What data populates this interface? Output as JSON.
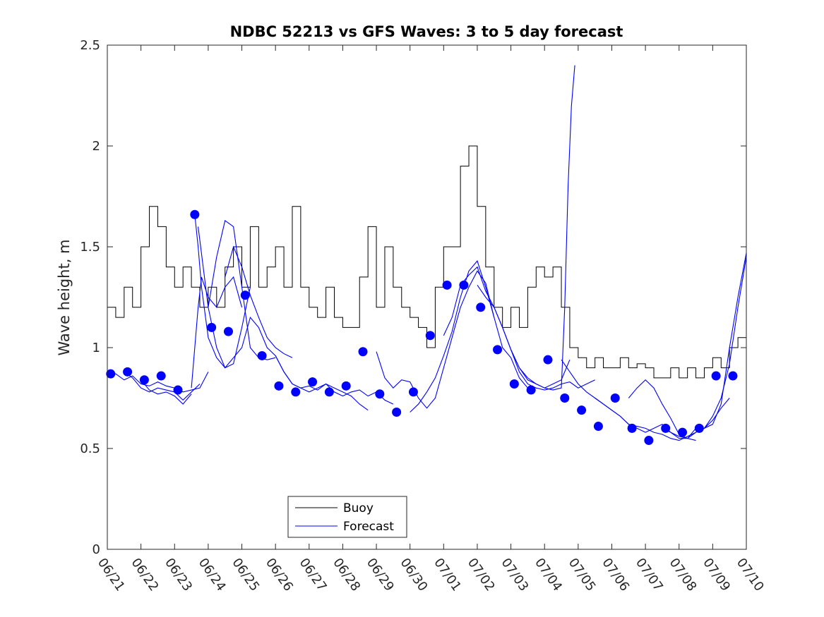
{
  "chart_data": {
    "type": "line",
    "title": "NDBC 52213 vs GFS Waves: 3 to 5 day forecast",
    "xlabel": "",
    "ylabel": "Wave height, m",
    "ylim": [
      0,
      2.5
    ],
    "yticks": [
      "0",
      "0.5",
      "1",
      "1.5",
      "2",
      "2.5"
    ],
    "xlim_days": [
      0,
      19
    ],
    "xticks": [
      "06/21",
      "06/22",
      "06/23",
      "06/24",
      "06/25",
      "06/26",
      "06/27",
      "06/28",
      "06/29",
      "06/30",
      "07/01",
      "07/02",
      "07/03",
      "07/04",
      "07/05",
      "07/06",
      "07/07",
      "07/08",
      "07/09",
      "07/10"
    ],
    "x_unit": "days since 06/21 00:00",
    "grid": false,
    "legend_position": "bottom-center",
    "colors": {
      "buoy": "#000000",
      "forecast": "#0000ff"
    },
    "series": [
      {
        "name": "Buoy",
        "style": "step-line",
        "x": [
          0,
          0.25,
          0.5,
          0.75,
          1,
          1.25,
          1.5,
          1.75,
          2,
          2.25,
          2.5,
          2.75,
          3,
          3.25,
          3.5,
          3.75,
          4,
          4.25,
          4.5,
          4.75,
          5,
          5.25,
          5.5,
          5.75,
          6,
          6.25,
          6.5,
          6.75,
          7,
          7.25,
          7.5,
          7.75,
          8,
          8.25,
          8.5,
          8.75,
          9,
          9.25,
          9.5,
          9.75,
          10,
          10.25,
          10.5,
          10.75,
          11,
          11.25,
          11.5,
          11.75,
          12,
          12.25,
          12.5,
          12.75,
          13,
          13.25,
          13.5,
          13.75,
          14,
          14.25,
          14.5,
          14.75,
          15,
          15.25,
          15.5,
          15.75,
          16,
          16.25,
          16.5,
          16.75,
          17,
          17.25,
          17.5,
          17.75,
          18,
          18.25,
          18.5,
          18.75,
          19
        ],
        "values": [
          1.2,
          1.15,
          1.3,
          1.2,
          1.5,
          1.7,
          1.6,
          1.4,
          1.3,
          1.4,
          1.3,
          1.2,
          1.3,
          1.2,
          1.4,
          1.5,
          1.3,
          1.6,
          1.3,
          1.4,
          1.5,
          1.3,
          1.7,
          1.3,
          1.2,
          1.15,
          1.3,
          1.15,
          1.1,
          1.1,
          1.35,
          1.6,
          1.2,
          1.5,
          1.3,
          1.2,
          1.15,
          1.1,
          1.0,
          1.3,
          1.5,
          1.5,
          1.9,
          2.0,
          1.7,
          1.4,
          1.2,
          1.1,
          1.2,
          1.1,
          1.3,
          1.4,
          1.35,
          1.4,
          1.2,
          1.0,
          0.95,
          0.9,
          0.95,
          0.9,
          0.9,
          0.95,
          0.9,
          0.92,
          0.9,
          0.85,
          0.85,
          0.9,
          0.85,
          0.9,
          0.85,
          0.9,
          0.95,
          0.9,
          1.0,
          1.05,
          1.0
        ]
      },
      {
        "name": "Forecast",
        "style": "line-segments-with-markers",
        "segments": [
          {
            "x": [
              0,
              0.25,
              0.5,
              0.75,
              1,
              1.25,
              1.5,
              1.75,
              2,
              2.25,
              2.5,
              2.75,
              3.0
            ],
            "values": [
              0.87,
              0.87,
              0.84,
              0.86,
              0.82,
              0.81,
              0.83,
              0.81,
              0.8,
              0.78,
              0.79,
              0.8,
              0.88
            ]
          },
          {
            "x": [
              0.5,
              0.75,
              1,
              1.25,
              1.5,
              1.75,
              2,
              2.25,
              2.5,
              2.75
            ],
            "values": [
              0.88,
              0.85,
              0.8,
              0.78,
              0.8,
              0.79,
              0.78,
              0.74,
              0.78,
              0.82
            ]
          },
          {
            "x": [
              1,
              1.25,
              1.5,
              1.75,
              2,
              2.25,
              2.5
            ],
            "values": [
              0.84,
              0.79,
              0.77,
              0.78,
              0.76,
              0.72,
              0.77
            ]
          },
          {
            "x": [
              2.5,
              2.6,
              2.7,
              2.8,
              2.9,
              3.0,
              3.25,
              3.5,
              3.75,
              4.0
            ],
            "values": [
              0.8,
              1.0,
              1.2,
              1.35,
              1.3,
              1.25,
              1.2,
              1.3,
              1.35,
              1.2
            ]
          },
          {
            "x": [
              2.6,
              2.7,
              2.8,
              3.0,
              3.25,
              3.5,
              3.75,
              4.0
            ],
            "values": [
              1.66,
              1.5,
              1.3,
              1.05,
              0.95,
              0.9,
              0.95,
              1.0
            ]
          },
          {
            "x": [
              2.7,
              2.85,
              3.0,
              3.25,
              3.5,
              3.75,
              4.0,
              4.25
            ],
            "values": [
              1.6,
              1.4,
              1.2,
              1.0,
              0.9,
              0.92,
              1.1,
              1.3
            ]
          },
          {
            "x": [
              3.0,
              3.25,
              3.5,
              3.75,
              4.0,
              4.25,
              4.5,
              4.75,
              5.0
            ],
            "values": [
              1.2,
              1.45,
              1.63,
              1.6,
              1.3,
              1.0,
              0.95,
              0.94,
              0.95
            ]
          },
          {
            "x": [
              3.5,
              3.75,
              4.0,
              4.25,
              4.5,
              4.75,
              5.0,
              5.25,
              5.5
            ],
            "values": [
              1.35,
              1.5,
              1.4,
              1.26,
              1.15,
              1.05,
              1.0,
              0.97,
              0.95
            ]
          },
          {
            "x": [
              4.0,
              4.25,
              4.5,
              4.75,
              5.0,
              5.25,
              5.5,
              5.75,
              6.0,
              6.25,
              6.5,
              6.75,
              7.0,
              7.25,
              7.5,
              7.75
            ],
            "values": [
              1.0,
              1.15,
              1.1,
              1.0,
              0.96,
              0.88,
              0.82,
              0.8,
              0.78,
              0.8,
              0.82,
              0.8,
              0.78,
              0.76,
              0.72,
              0.69
            ]
          },
          {
            "x": [
              5.0,
              5.25,
              5.5,
              5.75,
              6.0,
              6.25,
              6.5,
              6.75,
              7.0,
              7.25,
              7.5,
              7.75,
              8.0,
              8.25,
              8.5
            ],
            "values": [
              0.96,
              0.88,
              0.82,
              0.8,
              0.81,
              0.79,
              0.82,
              0.78,
              0.76,
              0.78,
              0.79,
              0.76,
              0.78,
              0.74,
              0.72
            ]
          },
          {
            "x": [
              8.0,
              8.25,
              8.5,
              8.75,
              9.0,
              9.25,
              9.5,
              9.75,
              10.0,
              10.25,
              10.5,
              10.75,
              11.0,
              11.25,
              11.5
            ],
            "values": [
              0.98,
              0.85,
              0.8,
              0.84,
              0.83,
              0.75,
              0.7,
              0.75,
              0.9,
              1.05,
              1.2,
              1.3,
              1.38,
              1.32,
              1.15
            ]
          },
          {
            "x": [
              9.0,
              9.25,
              9.5,
              9.75,
              10.0,
              10.25,
              10.5,
              10.75,
              11.0,
              11.25,
              11.5,
              11.75,
              12.0,
              12.25,
              12.5
            ],
            "values": [
              0.68,
              0.72,
              0.78,
              0.85,
              0.96,
              1.08,
              1.25,
              1.38,
              1.43,
              1.3,
              1.15,
              1.0,
              0.95,
              0.85,
              0.8
            ]
          },
          {
            "x": [
              10.0,
              10.25,
              10.5,
              10.75,
              11.0,
              11.25,
              11.5,
              11.75,
              12.0,
              12.25,
              12.5,
              12.75,
              13.0,
              13.25,
              13.5,
              13.75
            ],
            "values": [
              1.06,
              1.15,
              1.31,
              1.36,
              1.4,
              1.28,
              1.2,
              1.1,
              0.99,
              0.9,
              0.84,
              0.82,
              0.8,
              0.82,
              0.84,
              0.94
            ]
          },
          {
            "x": [
              11.0,
              11.25,
              11.5,
              11.75,
              12.0,
              12.25,
              12.5,
              12.75,
              13.0,
              13.25,
              13.5,
              13.75,
              14.0,
              14.25,
              14.5
            ],
            "values": [
              1.31,
              1.25,
              1.2,
              1.1,
              0.99,
              0.88,
              0.82,
              0.8,
              0.79,
              0.8,
              0.82,
              0.83,
              0.8,
              0.82,
              0.84
            ]
          },
          {
            "x": [
              12.0,
              12.25,
              12.5,
              12.75,
              13.0,
              13.25,
              13.5,
              13.6,
              13.7,
              13.8,
              13.9
            ],
            "values": [
              0.99,
              0.9,
              0.85,
              0.82,
              0.8,
              0.79,
              0.8,
              1.2,
              1.8,
              2.2,
              2.4
            ]
          },
          {
            "x": [
              13.5,
              13.75,
              14.0,
              14.25,
              14.5,
              14.75,
              15.0,
              15.25,
              15.5,
              15.75,
              16.0,
              16.25,
              16.5,
              16.75,
              17.0,
              17.25,
              17.5
            ],
            "values": [
              0.94,
              0.88,
              0.82,
              0.78,
              0.75,
              0.72,
              0.69,
              0.66,
              0.62,
              0.6,
              0.58,
              0.6,
              0.62,
              0.58,
              0.56,
              0.55,
              0.54
            ]
          },
          {
            "x": [
              14.5,
              14.75,
              15.0,
              15.25,
              15.5,
              15.75,
              16.0,
              16.25,
              16.5,
              16.75,
              17.0,
              17.25,
              17.5,
              17.75,
              18.0,
              18.25,
              18.5
            ],
            "values": [
              0.75,
              0.72,
              0.69,
              0.66,
              0.62,
              0.61,
              0.6,
              0.58,
              0.57,
              0.55,
              0.54,
              0.56,
              0.58,
              0.6,
              0.64,
              0.7,
              0.75
            ]
          },
          {
            "x": [
              15.5,
              15.75,
              16.0,
              16.25,
              16.5,
              16.75,
              17.0,
              17.25,
              17.5,
              17.75,
              18.0,
              18.25,
              18.5,
              18.75,
              19.0
            ],
            "values": [
              0.75,
              0.8,
              0.84,
              0.8,
              0.72,
              0.65,
              0.57,
              0.55,
              0.6,
              0.6,
              0.62,
              0.72,
              1.0,
              1.25,
              1.47
            ]
          },
          {
            "x": [
              16.5,
              16.75,
              17.0,
              17.25,
              17.5,
              17.75,
              18.0,
              18.25,
              18.5,
              18.75,
              19.0
            ],
            "values": [
              0.6,
              0.58,
              0.55,
              0.55,
              0.58,
              0.6,
              0.66,
              0.75,
              0.92,
              1.2,
              1.45
            ]
          }
        ],
        "markers_x": [
          0.1,
          0.6,
          1.1,
          1.6,
          2.1,
          2.6,
          3.1,
          3.6,
          4.1,
          4.6,
          5.1,
          5.6,
          6.1,
          6.6,
          7.1,
          7.6,
          8.1,
          8.6,
          9.1,
          9.6,
          10.1,
          10.6,
          11.1,
          11.6,
          12.1,
          12.6,
          13.1,
          13.6,
          14.1,
          14.6,
          15.1,
          15.6,
          16.1,
          16.6,
          17.1,
          17.6,
          18.1,
          18.6
        ],
        "markers_values": [
          0.87,
          0.88,
          0.84,
          0.86,
          0.79,
          1.66,
          1.1,
          1.08,
          1.26,
          0.96,
          0.81,
          0.78,
          0.83,
          0.78,
          0.81,
          0.98,
          0.77,
          0.68,
          0.78,
          1.06,
          1.31,
          1.31,
          1.2,
          0.99,
          0.82,
          0.79,
          0.94,
          0.75,
          0.69,
          0.61,
          0.75,
          0.6,
          0.54,
          0.6,
          0.58,
          0.6,
          0.86,
          0.86
        ]
      }
    ],
    "legend": [
      "Buoy",
      "Forecast"
    ]
  }
}
